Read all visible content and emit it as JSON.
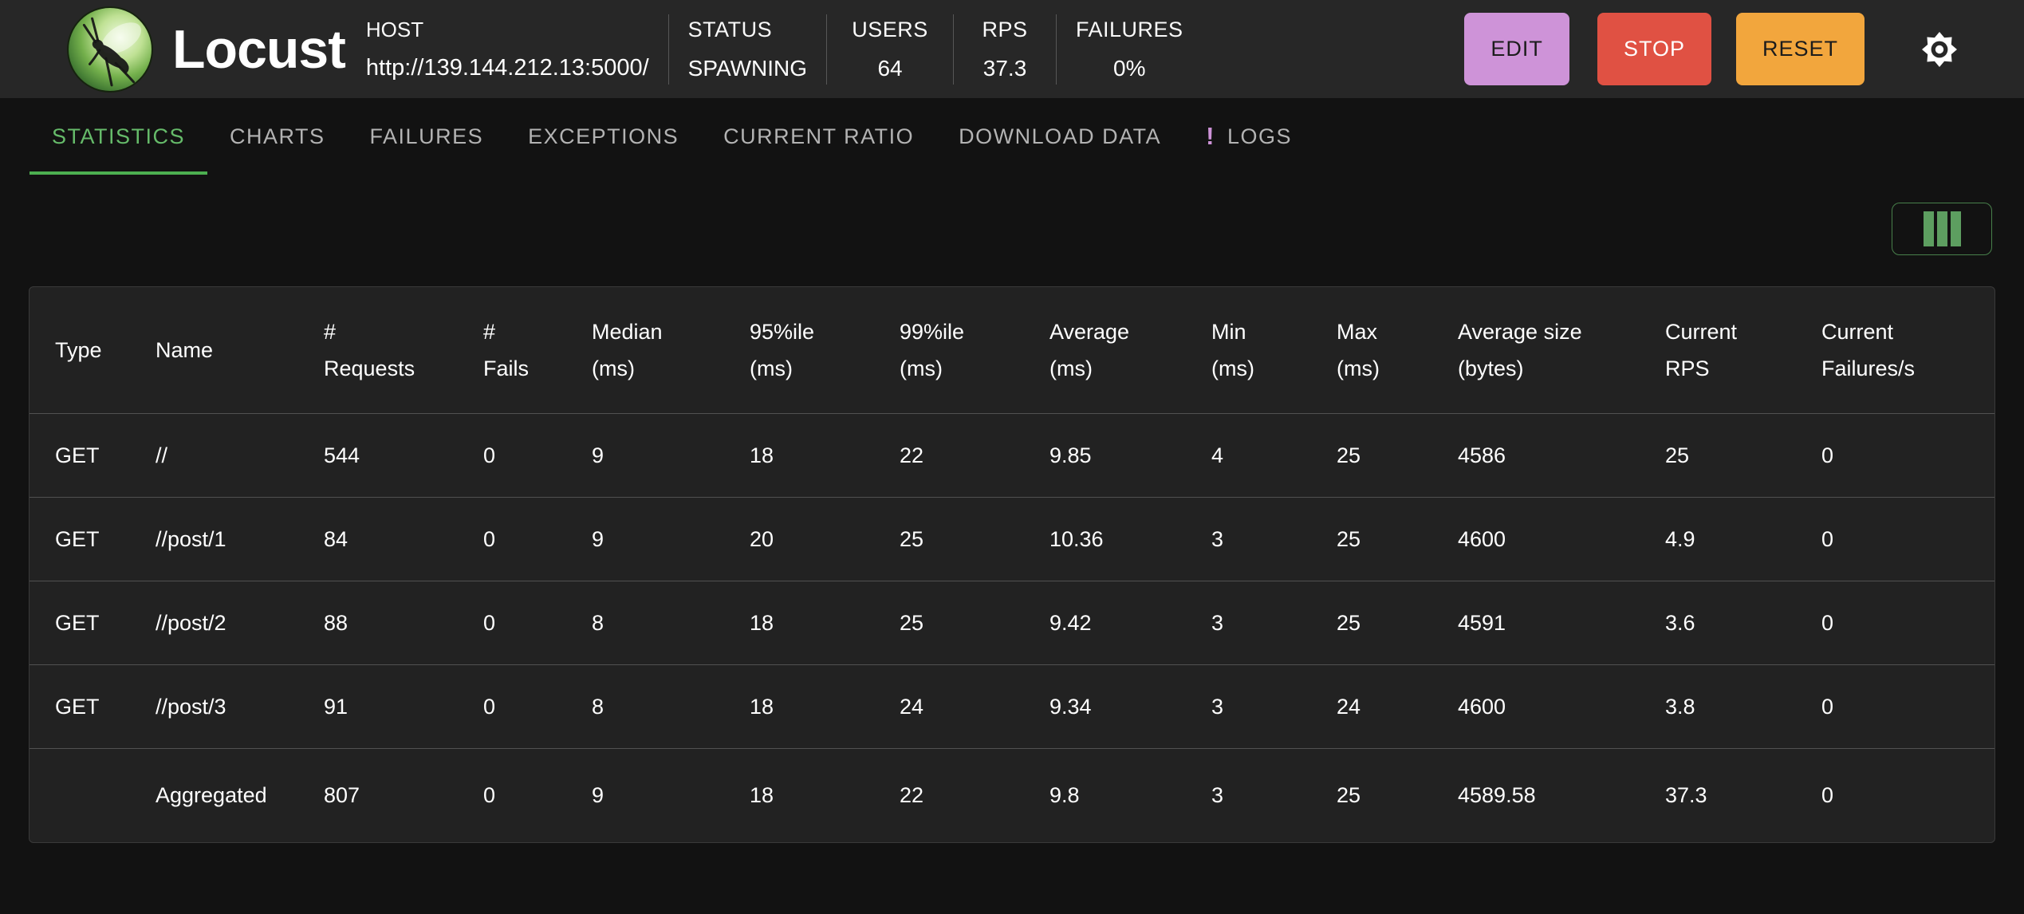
{
  "header": {
    "app_title": "Locust",
    "host_label": "HOST",
    "host_url": "http://139.144.212.13:5000/",
    "status_label": "STATUS",
    "status_value": "SPAWNING",
    "users_label": "USERS",
    "users_value": "64",
    "rps_label": "RPS",
    "rps_value": "37.3",
    "failures_label": "FAILURES",
    "failures_value": "0%",
    "edit_label": "EDIT",
    "stop_label": "STOP",
    "reset_label": "RESET"
  },
  "icons": {
    "logo": "locust-grasshopper-logo",
    "theme_toggle": "sun-gear-icon",
    "logs_alert": "!",
    "column_selector": "columns-icon"
  },
  "colors": {
    "appbar_bg": "#272727",
    "page_bg": "#121212",
    "table_bg": "#222222",
    "accent_green": "#4caf50",
    "tab_active_green": "#66bb6a",
    "edit_purple": "#ce93d8",
    "stop_red": "#e05143",
    "reset_orange": "#f2a63d",
    "logs_icon_purple": "#ce93d8"
  },
  "tabs": [
    {
      "label": "STATISTICS",
      "active": true
    },
    {
      "label": "CHARTS",
      "active": false
    },
    {
      "label": "FAILURES",
      "active": false
    },
    {
      "label": "EXCEPTIONS",
      "active": false
    },
    {
      "label": "CURRENT RATIO",
      "active": false
    },
    {
      "label": "DOWNLOAD DATA",
      "active": false
    },
    {
      "label": "LOGS",
      "active": false,
      "icon": "!"
    }
  ],
  "table": {
    "columns": [
      {
        "key": "type",
        "line1": "Type",
        "line2": ""
      },
      {
        "key": "name",
        "line1": "Name",
        "line2": ""
      },
      {
        "key": "requests",
        "line1": "#",
        "line2": "Requests"
      },
      {
        "key": "fails",
        "line1": "#",
        "line2": "Fails"
      },
      {
        "key": "median",
        "line1": "Median",
        "line2": "(ms)"
      },
      {
        "key": "p95",
        "line1": "95%ile",
        "line2": "(ms)"
      },
      {
        "key": "p99",
        "line1": "99%ile",
        "line2": "(ms)"
      },
      {
        "key": "average",
        "line1": "Average",
        "line2": "(ms)"
      },
      {
        "key": "min",
        "line1": "Min",
        "line2": "(ms)"
      },
      {
        "key": "max",
        "line1": "Max",
        "line2": "(ms)"
      },
      {
        "key": "avg_size",
        "line1": "Average size",
        "line2": "(bytes)"
      },
      {
        "key": "current_rps",
        "line1": "Current",
        "line2": "RPS"
      },
      {
        "key": "current_failures",
        "line1": "Current",
        "line2": "Failures/s"
      }
    ],
    "rows": [
      [
        "GET",
        "//",
        "544",
        "0",
        "9",
        "18",
        "22",
        "9.85",
        "4",
        "25",
        "4586",
        "25",
        "0"
      ],
      [
        "GET",
        "//post/1",
        "84",
        "0",
        "9",
        "20",
        "25",
        "10.36",
        "3",
        "25",
        "4600",
        "4.9",
        "0"
      ],
      [
        "GET",
        "//post/2",
        "88",
        "0",
        "8",
        "18",
        "25",
        "9.42",
        "3",
        "25",
        "4591",
        "3.6",
        "0"
      ],
      [
        "GET",
        "//post/3",
        "91",
        "0",
        "8",
        "18",
        "24",
        "9.34",
        "3",
        "24",
        "4600",
        "3.8",
        "0"
      ],
      [
        "",
        "Aggregated",
        "807",
        "0",
        "9",
        "18",
        "22",
        "9.8",
        "3",
        "25",
        "4589.58",
        "37.3",
        "0"
      ]
    ]
  }
}
